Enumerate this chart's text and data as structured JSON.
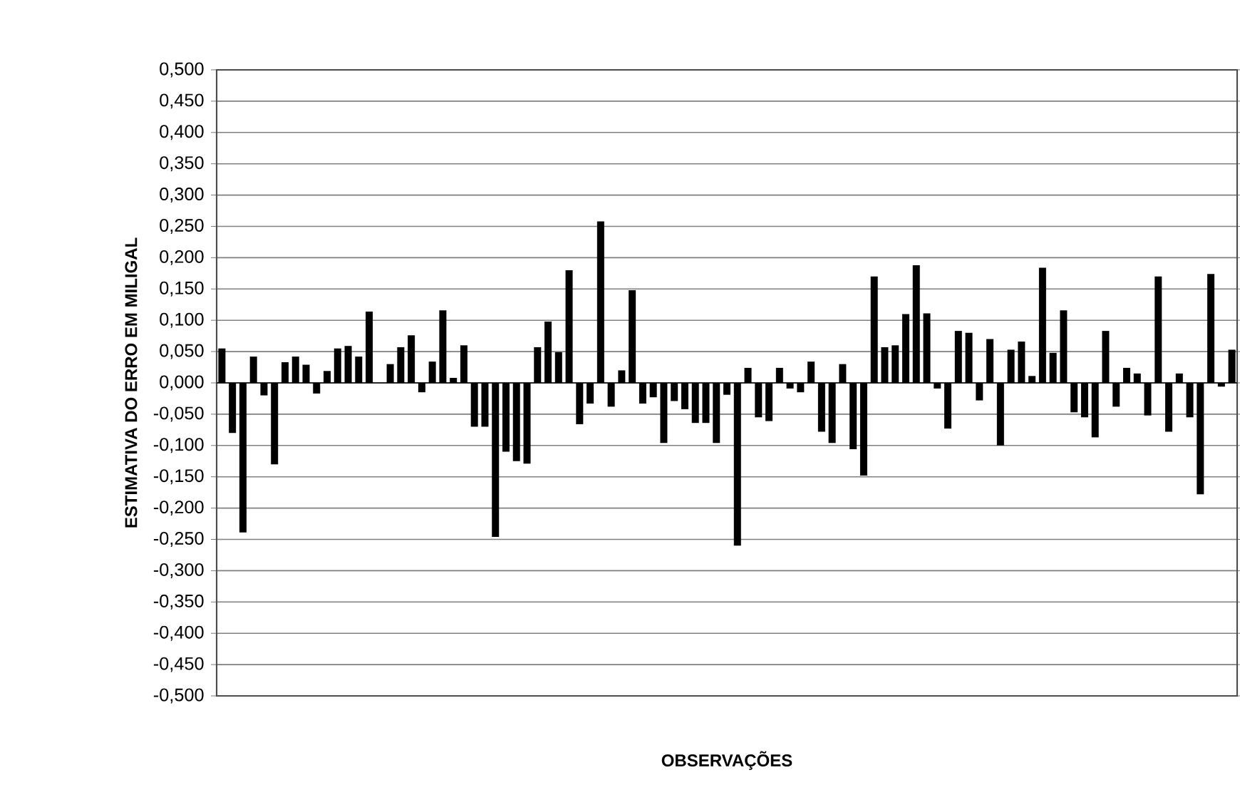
{
  "chart_data": {
    "type": "bar",
    "xlabel": "OBSERVAÇÕES",
    "ylabel": "ESTIMATIVA DO ERRO EM MILIGAL",
    "categories": [
      null,
      null,
      null,
      null,
      null,
      null,
      null,
      null,
      null,
      null,
      null,
      null,
      null,
      null,
      null,
      null,
      null,
      null,
      null,
      null,
      null,
      null,
      null,
      null,
      null,
      null,
      null,
      null,
      null,
      null,
      null,
      null,
      null,
      null,
      null,
      null,
      null,
      null,
      null,
      null,
      null,
      null,
      null,
      null,
      null,
      null,
      null,
      null,
      null,
      null,
      null,
      null,
      null,
      null,
      null,
      null,
      null,
      null,
      null,
      null,
      null,
      null,
      null,
      null,
      null,
      null,
      null,
      null,
      null,
      null,
      null,
      null,
      null,
      null,
      null,
      null,
      null,
      null,
      null,
      null,
      null,
      null,
      null,
      null,
      null,
      null,
      null,
      null,
      null,
      null,
      null,
      null,
      null,
      null,
      null,
      null,
      null
    ],
    "values": [
      0.055,
      -0.08,
      -0.239,
      0.042,
      -0.02,
      -0.13,
      0.033,
      0.042,
      0.029,
      -0.017,
      0.019,
      0.055,
      0.059,
      0.042,
      0.114,
      null,
      0.03,
      0.057,
      0.076,
      -0.015,
      0.034,
      0.116,
      0.008,
      0.06,
      -0.07,
      -0.07,
      -0.246,
      -0.11,
      -0.125,
      -0.129,
      0.057,
      0.098,
      0.049,
      0.18,
      -0.066,
      -0.033,
      0.258,
      -0.038,
      0.02,
      0.148,
      -0.033,
      -0.023,
      -0.096,
      -0.029,
      -0.042,
      -0.064,
      -0.064,
      -0.096,
      -0.019,
      -0.26,
      0.024,
      -0.055,
      -0.061,
      0.024,
      -0.009,
      -0.015,
      0.034,
      -0.078,
      -0.096,
      0.03,
      -0.106,
      -0.148,
      0.17,
      0.057,
      0.06,
      0.11,
      0.188,
      0.111,
      -0.009,
      -0.073,
      0.083,
      0.08,
      -0.028,
      0.07,
      -0.1,
      0.053,
      0.066,
      0.011,
      0.184,
      0.048,
      0.116,
      -0.047,
      -0.055,
      -0.087,
      0.083,
      -0.038,
      0.024,
      0.015,
      -0.052,
      0.17,
      -0.078,
      0.015,
      -0.055,
      -0.178,
      0.174,
      -0.006,
      0.053
    ],
    "color": "#000000",
    "ylim": [
      -0.5,
      0.5
    ],
    "yticks": [
      {
        "value": -0.5,
        "label": "-0,500"
      },
      {
        "value": -0.45,
        "label": "-0,450"
      },
      {
        "value": -0.4,
        "label": "-0,400"
      },
      {
        "value": -0.35,
        "label": "-0,350"
      },
      {
        "value": -0.3,
        "label": "-0,300"
      },
      {
        "value": -0.25,
        "label": "-0,250"
      },
      {
        "value": -0.2,
        "label": "-0,200"
      },
      {
        "value": -0.15,
        "label": "-0,150"
      },
      {
        "value": -0.1,
        "label": "-0,100"
      },
      {
        "value": -0.05,
        "label": "-0,050"
      },
      {
        "value": 0,
        "label": "0,000"
      },
      {
        "value": 0.05,
        "label": "0,050"
      },
      {
        "value": 0.1,
        "label": "0,100"
      },
      {
        "value": 0.15,
        "label": "0,150"
      },
      {
        "value": 0.2,
        "label": "0,200"
      },
      {
        "value": 0.25,
        "label": "0,250"
      },
      {
        "value": 0.3,
        "label": "0,300"
      },
      {
        "value": 0.35,
        "label": "0,350"
      },
      {
        "value": 0.4,
        "label": "0,400"
      },
      {
        "value": 0.45,
        "label": "0,450"
      },
      {
        "value": 0.5,
        "label": "0,500"
      }
    ],
    "grid": "y",
    "tick_labels": "y"
  }
}
